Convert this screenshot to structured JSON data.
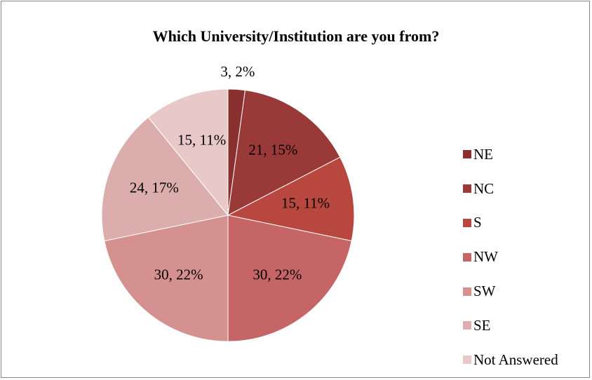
{
  "chart_data": {
    "type": "pie",
    "title": "Which University/Institution are you from?",
    "categories": [
      "NE",
      "NC",
      "S",
      "NW",
      "SW",
      "SE",
      "Not Answered"
    ],
    "values": [
      3,
      21,
      15,
      30,
      30,
      24,
      15
    ],
    "data_labels": [
      "3, 2%",
      "21, 15%",
      "15, 11%",
      "30, 22%",
      "30, 22%",
      "24, 17%",
      "15, 11%"
    ],
    "colors": [
      "#8B3030",
      "#9A3A38",
      "#B8473F",
      "#C56565",
      "#D49190",
      "#DBADAD",
      "#E9C8C8"
    ],
    "legend_position": "right",
    "start_angle": "12 o'clock, clockwise"
  }
}
